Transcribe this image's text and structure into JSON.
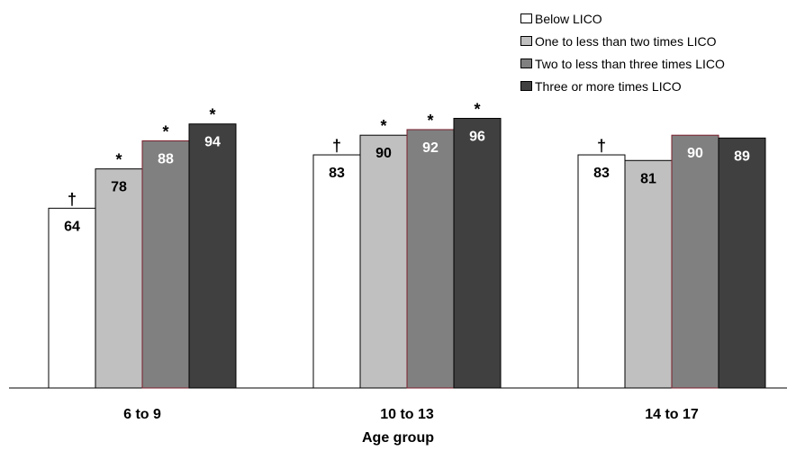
{
  "chart_data": {
    "type": "bar",
    "xlabel": "Age group",
    "ylabel": "",
    "ylim": [
      0,
      100
    ],
    "grid": false,
    "legend_position": "top-right",
    "categories": [
      "6 to 9",
      "10 to 13",
      "14 to 17"
    ],
    "series": [
      {
        "name": "Below LICO",
        "values": [
          64,
          83,
          83
        ],
        "marks": [
          "†",
          "†",
          "†"
        ],
        "color": "#ffffff"
      },
      {
        "name": "One to less than two times LICO",
        "values": [
          78,
          90,
          81
        ],
        "marks": [
          "*",
          "*",
          ""
        ],
        "color": "#c0c0c0"
      },
      {
        "name": "Two to less than three times LICO",
        "values": [
          88,
          92,
          90
        ],
        "marks": [
          "*",
          "*",
          ""
        ],
        "color": "#808080"
      },
      {
        "name": "Three or more times LICO",
        "values": [
          94,
          96,
          89
        ],
        "marks": [
          "*",
          "*",
          ""
        ],
        "color": "#404040"
      }
    ]
  }
}
